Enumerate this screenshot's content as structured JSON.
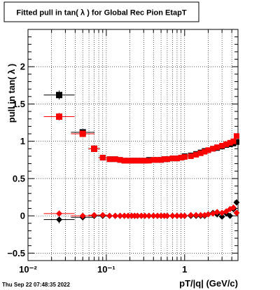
{
  "chart_data": {
    "type": "scatter",
    "title": "Fitted pull in tan( λ ) for Global Rec Pion EtapT",
    "xlabel": "pT/|q| (GeV/c)",
    "ylabel": "pull in tan( λ )",
    "x_scale": "log",
    "xlim": [
      0.01,
      4.8
    ],
    "ylim": [
      -0.6,
      2.5
    ],
    "grid": true,
    "x_ticks": [
      {
        "v": 0.01,
        "label": "10⁻²"
      },
      {
        "v": 0.1,
        "label": "10⁻¹"
      },
      {
        "v": 1,
        "label": "1"
      }
    ],
    "y_ticks": [
      {
        "v": -0.5,
        "label": "−0.5"
      },
      {
        "v": 0,
        "label": "0"
      },
      {
        "v": 0.5,
        "label": "0.5"
      },
      {
        "v": 1,
        "label": "1"
      },
      {
        "v": 1.5,
        "label": "1.5"
      },
      {
        "v": 2,
        "label": "2"
      }
    ],
    "timestamp": "Thu Sep 22 07:48:35 2022",
    "series": [
      {
        "color": "#000000",
        "marker": "square",
        "x": [
          0.025,
          0.05,
          0.07,
          0.09,
          0.11,
          0.13,
          0.15,
          0.17,
          0.19,
          0.21,
          0.23,
          0.25,
          0.28,
          0.31,
          0.35,
          0.4,
          0.45,
          0.5,
          0.55,
          0.6,
          0.7,
          0.8,
          0.9,
          1.0,
          1.2,
          1.4,
          1.6,
          1.8,
          2.0,
          2.3,
          2.6,
          3.0,
          3.4,
          3.8,
          4.2,
          4.6
        ],
        "y": [
          1.62,
          1.12,
          0.9,
          0.78,
          0.76,
          0.76,
          0.75,
          0.74,
          0.74,
          0.74,
          0.74,
          0.74,
          0.74,
          0.74,
          0.75,
          0.75,
          0.75,
          0.75,
          0.76,
          0.76,
          0.77,
          0.77,
          0.78,
          0.8,
          0.81,
          0.83,
          0.85,
          0.87,
          0.88,
          0.9,
          0.91,
          0.93,
          0.95,
          0.96,
          0.97,
          0.99
        ],
        "yerr": [
          0.06,
          0.03,
          0.02,
          0.01,
          0.01,
          0.01,
          0.01,
          0.01,
          0.01,
          0.01,
          0.01,
          0.01,
          0.01,
          0.01,
          0.01,
          0.01,
          0.01,
          0.01,
          0.01,
          0.01,
          0.01,
          0.01,
          0.01,
          0.01,
          0.01,
          0.01,
          0.01,
          0.01,
          0.01,
          0.01,
          0.01,
          0.01,
          0.01,
          0.01,
          0.01,
          0.02
        ]
      },
      {
        "color": "#ff0000",
        "marker": "square",
        "x": [
          0.025,
          0.05,
          0.07,
          0.09,
          0.11,
          0.13,
          0.15,
          0.17,
          0.19,
          0.21,
          0.23,
          0.25,
          0.28,
          0.31,
          0.35,
          0.4,
          0.45,
          0.5,
          0.55,
          0.6,
          0.7,
          0.8,
          0.9,
          1.0,
          1.2,
          1.4,
          1.6,
          1.8,
          2.0,
          2.3,
          2.6,
          3.0,
          3.4,
          3.8,
          4.2,
          4.6
        ],
        "y": [
          1.33,
          1.1,
          0.9,
          0.78,
          0.76,
          0.76,
          0.75,
          0.74,
          0.74,
          0.74,
          0.74,
          0.74,
          0.74,
          0.74,
          0.74,
          0.75,
          0.75,
          0.75,
          0.76,
          0.76,
          0.77,
          0.77,
          0.78,
          0.79,
          0.8,
          0.82,
          0.84,
          0.86,
          0.88,
          0.9,
          0.92,
          0.94,
          0.96,
          0.98,
          1.0,
          1.07
        ],
        "yerr": [
          0.05,
          0.03,
          0.02,
          0.01,
          0.01,
          0.01,
          0.01,
          0.01,
          0.01,
          0.01,
          0.01,
          0.01,
          0.01,
          0.01,
          0.01,
          0.01,
          0.01,
          0.01,
          0.01,
          0.01,
          0.01,
          0.01,
          0.01,
          0.01,
          0.01,
          0.01,
          0.01,
          0.01,
          0.01,
          0.01,
          0.01,
          0.01,
          0.01,
          0.01,
          0.02,
          0.03
        ]
      },
      {
        "color": "#000000",
        "marker": "diamond",
        "x": [
          0.025,
          0.05,
          0.07,
          0.09,
          0.11,
          0.13,
          0.15,
          0.17,
          0.19,
          0.21,
          0.23,
          0.25,
          0.28,
          0.31,
          0.35,
          0.4,
          0.45,
          0.5,
          0.55,
          0.6,
          0.7,
          0.8,
          0.9,
          1.0,
          1.2,
          1.4,
          1.6,
          1.8,
          2.0,
          2.3,
          2.6,
          3.0,
          3.4,
          3.8,
          4.2,
          4.6
        ],
        "y": [
          -0.05,
          -0.02,
          0.0,
          0.0,
          0.0,
          0.0,
          0.0,
          0.0,
          0.0,
          0.0,
          0.0,
          0.0,
          0.0,
          0.0,
          0.0,
          0.0,
          0.0,
          0.0,
          0.0,
          0.0,
          0.0,
          0.0,
          0.0,
          0.0,
          0.0,
          0.0,
          0.0,
          0.0,
          0.02,
          0.04,
          0.02,
          -0.01,
          0.03,
          0.0,
          0.09,
          0.18
        ],
        "yerr": [
          0.05,
          0.03,
          0.01,
          0.01,
          0.01,
          0.01,
          0.01,
          0.01,
          0.01,
          0.01,
          0.01,
          0.01,
          0.01,
          0.01,
          0.01,
          0.01,
          0.01,
          0.01,
          0.01,
          0.01,
          0.01,
          0.01,
          0.01,
          0.01,
          0.01,
          0.01,
          0.01,
          0.01,
          0.01,
          0.01,
          0.01,
          0.01,
          0.02,
          0.02,
          0.03,
          0.04
        ]
      },
      {
        "color": "#ff0000",
        "marker": "diamond",
        "x": [
          0.025,
          0.05,
          0.07,
          0.09,
          0.11,
          0.13,
          0.15,
          0.17,
          0.19,
          0.21,
          0.23,
          0.25,
          0.28,
          0.31,
          0.35,
          0.4,
          0.45,
          0.5,
          0.55,
          0.6,
          0.7,
          0.8,
          0.9,
          1.0,
          1.2,
          1.4,
          1.6,
          1.8,
          2.0,
          2.3,
          2.6,
          3.0,
          3.4,
          3.8,
          4.2,
          4.6
        ],
        "y": [
          0.03,
          0.0,
          0.01,
          0.01,
          0.0,
          0.0,
          0.0,
          0.0,
          0.0,
          0.0,
          0.0,
          0.0,
          0.0,
          0.0,
          0.0,
          0.0,
          0.0,
          0.0,
          0.0,
          0.0,
          0.0,
          0.0,
          0.0,
          0.0,
          0.01,
          0.01,
          0.01,
          0.01,
          0.02,
          0.03,
          0.05,
          0.04,
          0.06,
          0.09,
          0.11,
          0.04
        ],
        "yerr": [
          0.04,
          0.02,
          0.01,
          0.01,
          0.01,
          0.01,
          0.01,
          0.01,
          0.01,
          0.01,
          0.01,
          0.01,
          0.01,
          0.01,
          0.01,
          0.01,
          0.01,
          0.01,
          0.01,
          0.01,
          0.01,
          0.01,
          0.01,
          0.01,
          0.01,
          0.01,
          0.01,
          0.01,
          0.01,
          0.01,
          0.02,
          0.02,
          0.02,
          0.02,
          0.03,
          0.03
        ]
      }
    ]
  }
}
